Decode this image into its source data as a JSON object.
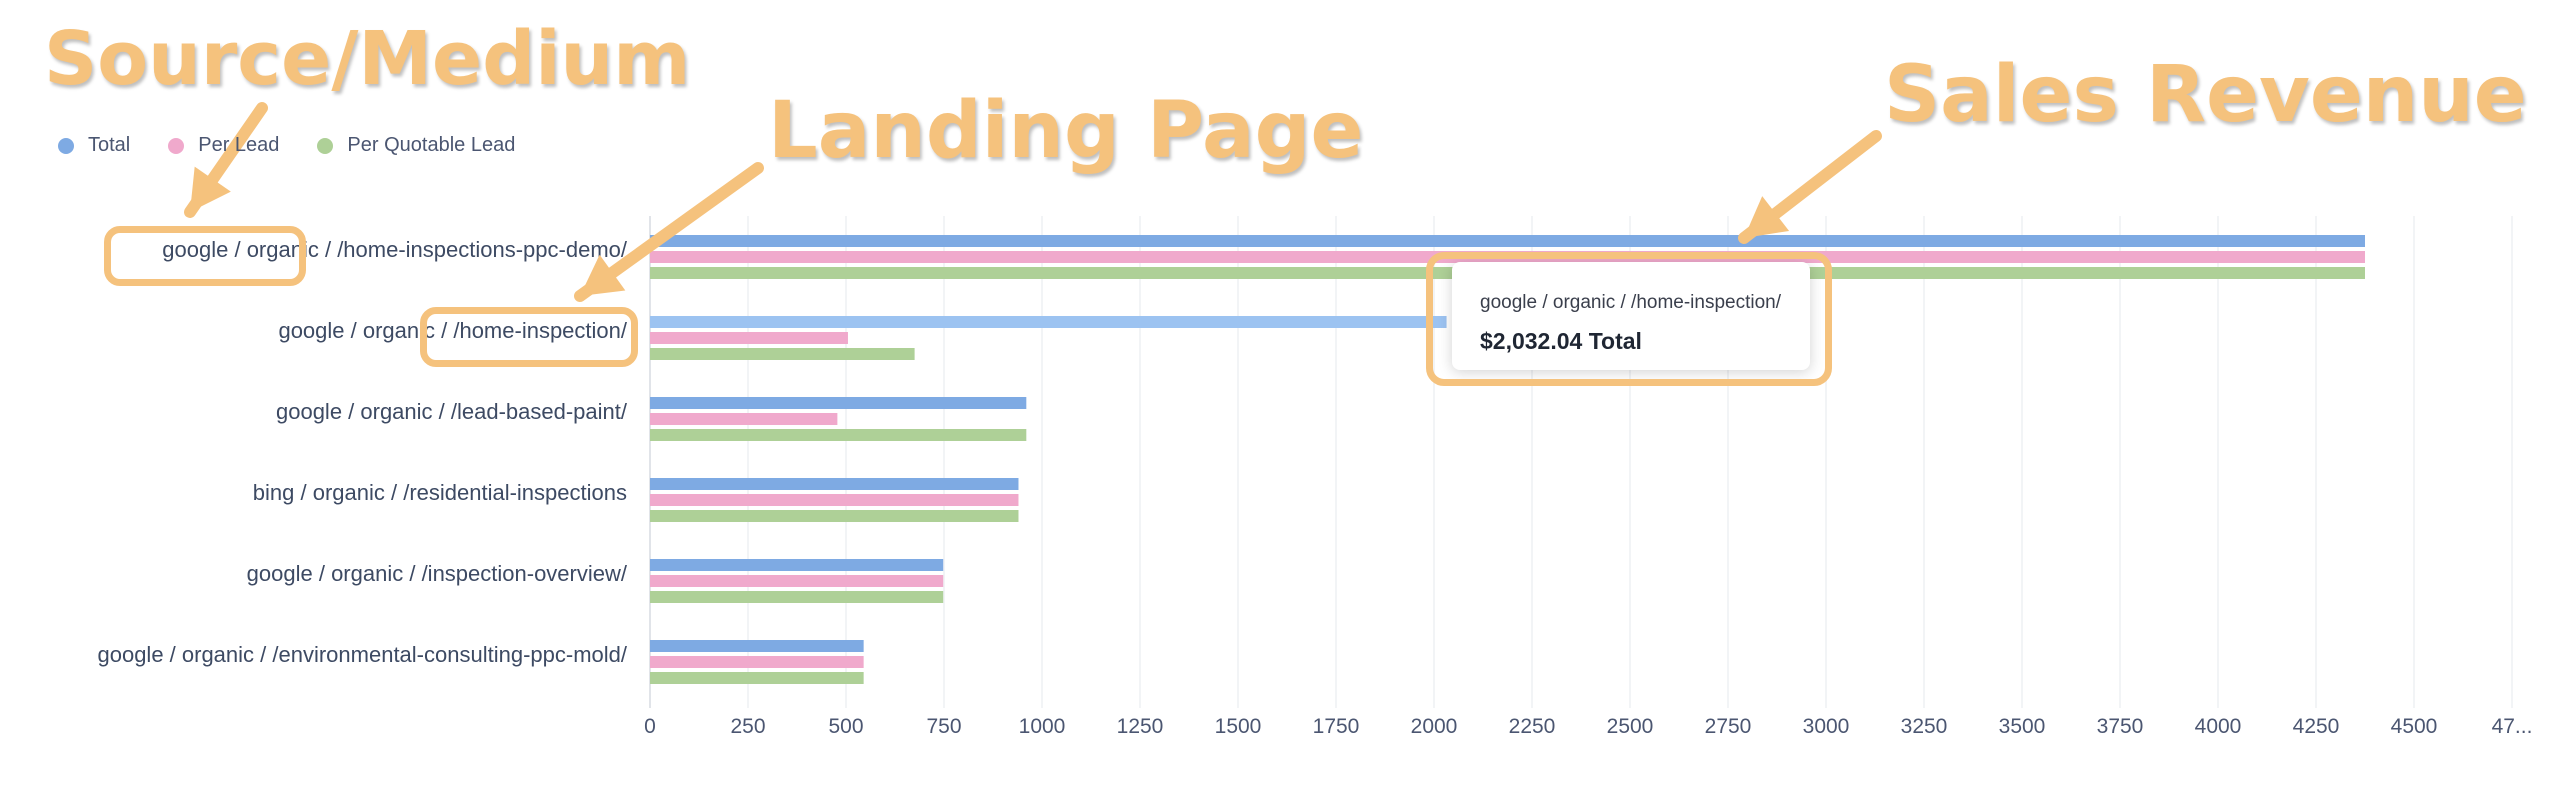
{
  "legend": [
    {
      "label": "Total",
      "color": "#7eaae3"
    },
    {
      "label": "Per Lead",
      "color": "#f0a9cc"
    },
    {
      "label": "Per Quotable Lead",
      "color": "#aed097"
    }
  ],
  "annotations": {
    "source_medium": "Source/Medium",
    "landing_page": "Landing Page",
    "sales_revenue": "Sales Revenue"
  },
  "tooltip": {
    "label": "google / organic / /home-inspection/",
    "value": "$2,032.04 Total"
  },
  "chart_data": {
    "type": "bar",
    "orientation": "horizontal",
    "categories": [
      "google / organic / /home-inspections-ppc-demo/",
      "google / organic / /home-inspection/",
      "google / organic / /lead-based-paint/",
      "bing / organic / /residential-inspections",
      "google / organic / /inspection-overview/",
      "google / organic / /environmental-consulting-ppc-mold/"
    ],
    "series": [
      {
        "name": "Total",
        "values": [
          4375,
          2032.04,
          960,
          940,
          748,
          545
        ]
      },
      {
        "name": "Per Lead",
        "values": [
          4375,
          505,
          478,
          940,
          748,
          545
        ]
      },
      {
        "name": "Per Quotable Lead",
        "values": [
          4375,
          675,
          960,
          940,
          748,
          545
        ]
      }
    ],
    "x_ticks": [
      "0",
      "250",
      "500",
      "750",
      "1000",
      "1250",
      "1500",
      "1750",
      "2000",
      "2250",
      "2500",
      "2750",
      "3000",
      "3250",
      "3500",
      "3750",
      "4000",
      "4250",
      "4500",
      "47..."
    ],
    "xlim": [
      0,
      4750
    ],
    "grid": true,
    "legend_position": "top-left"
  }
}
